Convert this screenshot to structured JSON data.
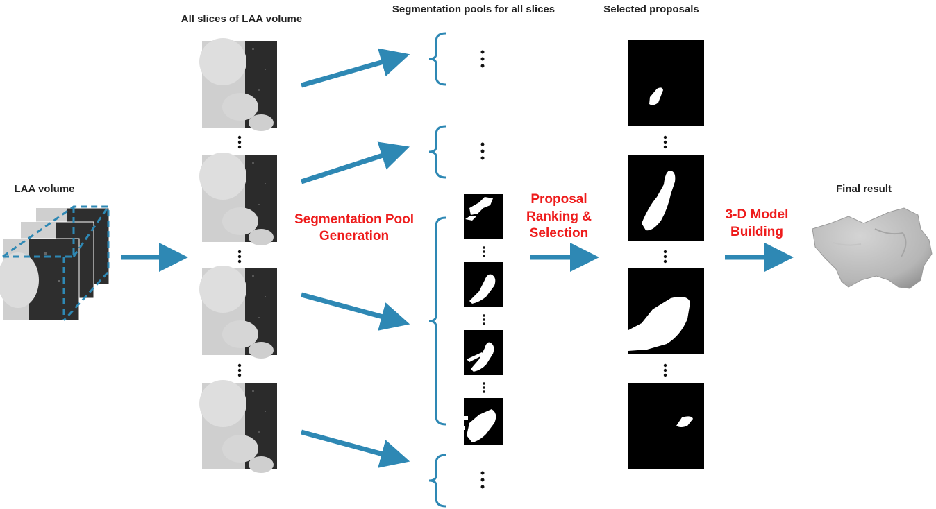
{
  "labels": {
    "laa_volume": "LAA volume",
    "all_slices": "All slices of LAA volume",
    "segmentation_pools": "Segmentation pools for all slices",
    "selected_proposals": "Selected proposals",
    "final_result": "Final result"
  },
  "steps": {
    "pool_generation": "Segmentation Pool Generation",
    "ranking_selection": "Proposal Ranking & Selection",
    "model_building": "3-D Model Building"
  },
  "colors": {
    "arrow": "#2e88b4",
    "bracket": "#2e88b4",
    "step_text": "#ee1c1c",
    "label_text": "#222222",
    "mask_bg": "#000000",
    "mask_fg": "#ffffff"
  },
  "icons": [
    "ct-volume-stack",
    "ct-slice",
    "binary-mask",
    "3d-model",
    "ellipsis"
  ]
}
